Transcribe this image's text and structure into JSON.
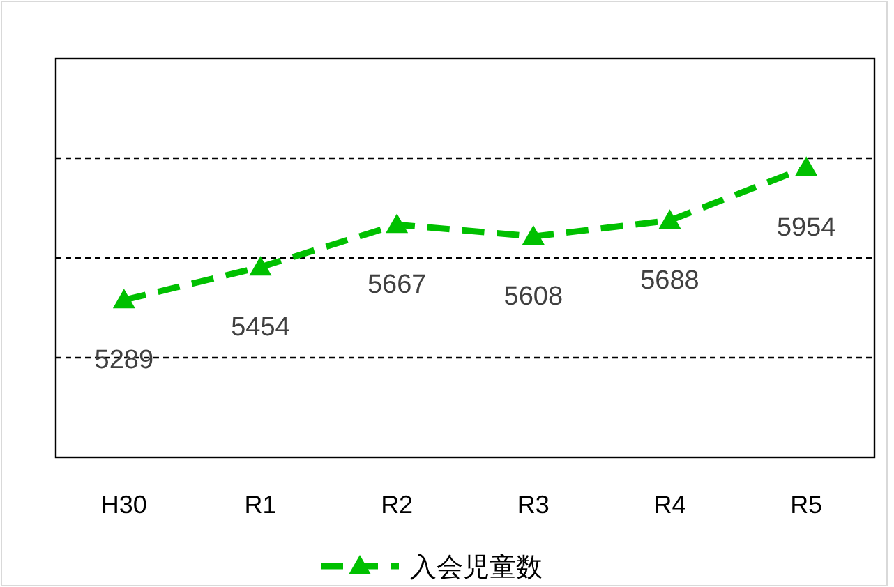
{
  "chart_data": {
    "type": "line",
    "categories": [
      "H30",
      "R1",
      "R2",
      "R3",
      "R4",
      "R5"
    ],
    "series": [
      {
        "name": "入会児童数",
        "color": "#00c000",
        "values": [
          5289,
          5454,
          5667,
          5608,
          5688,
          5954
        ]
      }
    ],
    "ylim": [
      4500,
      6500
    ],
    "yticks": [
      {
        "value": 5000,
        "label": null
      },
      {
        "value": 5500,
        "label": null
      },
      {
        "value": 6000,
        "label": null
      }
    ],
    "tick_labels": "x",
    "grid": "y",
    "data_labels": true,
    "legend": "bottom",
    "marker": "triangle",
    "line_style": "dashed"
  }
}
